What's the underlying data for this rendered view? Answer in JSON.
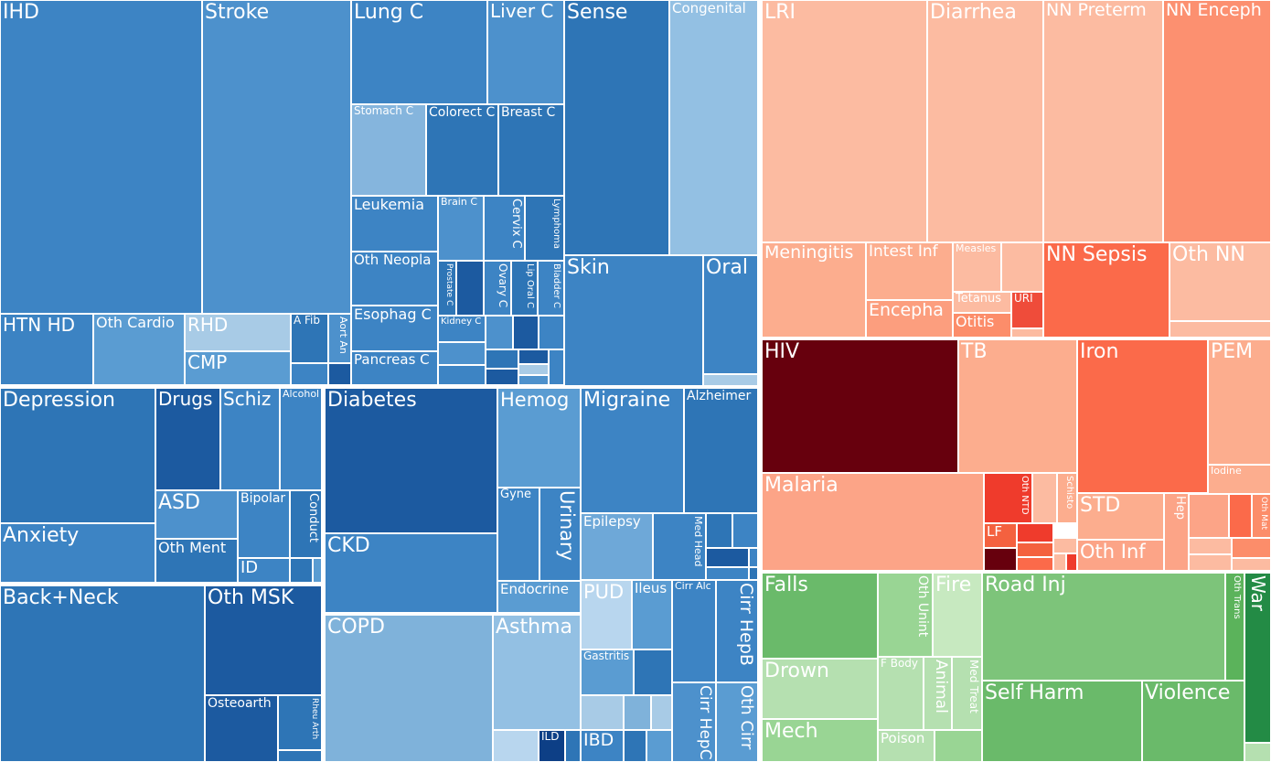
{
  "chart_data": {
    "type": "treemap",
    "title": "",
    "groups": [
      {
        "color": "#2e75b6",
        "children": [
          "IHD",
          "Stroke",
          "HTN HD",
          "Oth Cardio",
          "RHD",
          "CMP",
          "A Fib",
          "Aort An"
        ]
      },
      {
        "color": "#2e75b6",
        "children": [
          "Lung C",
          "Liver C",
          "Stomach C",
          "Colorect C",
          "Breast C",
          "Leukemia",
          "Brain C",
          "Cervix C",
          "Lymphoma",
          "Oth Neopla",
          "Prostate C",
          "Ovary C",
          "Lip Oral C",
          "Bladder C",
          "Kidney C",
          "Esophag C",
          "Pancreas C"
        ]
      },
      {
        "color": "#2e75b6",
        "children": [
          "Sense",
          "Congenital",
          "Skin",
          "Oral"
        ]
      },
      {
        "color": "#2e75b6",
        "children": [
          "Depression",
          "Anxiety",
          "Drugs",
          "Schiz",
          "Alcohol",
          "ASD",
          "Bipolar",
          "Conduct",
          "Oth Ment",
          "ID"
        ]
      },
      {
        "color": "#2e75b6",
        "children": [
          "Diabetes",
          "CKD",
          "Hemog",
          "Gyne",
          "Urinary",
          "Endocrine"
        ]
      },
      {
        "color": "#2e75b6",
        "children": [
          "Migraine",
          "Alzheimer",
          "Epilepsy",
          "Med Head"
        ]
      },
      {
        "color": "#2e75b6",
        "children": [
          "Back+Neck",
          "Oth MSK",
          "Osteoarth",
          "Rheu Arth"
        ]
      },
      {
        "color": "#2e75b6",
        "children": [
          "COPD",
          "Asthma",
          "ILD"
        ]
      },
      {
        "color": "#2e75b6",
        "children": [
          "PUD",
          "Ileus",
          "Gastritis",
          "IBD",
          "Cirr Alc",
          "Cirr HepB",
          "Cirr HepC",
          "Oth Cirr"
        ]
      },
      {
        "color": "#fc8d62",
        "children": [
          "LRI",
          "Diarrhea",
          "Meningitis",
          "Intest Inf",
          "Measles",
          "Encepha",
          "Tetanus",
          "URI",
          "Otitis"
        ]
      },
      {
        "color": "#fc8d62",
        "children": [
          "NN Preterm",
          "NN Enceph",
          "NN Sepsis",
          "Oth NN"
        ]
      },
      {
        "color": "#fc8d62",
        "children": [
          "HIV",
          "TB",
          "Malaria",
          "Oth NTD",
          "Schisto",
          "LF",
          "STD",
          "Hep",
          "Oth Inf"
        ]
      },
      {
        "color": "#fc8d62",
        "children": [
          "Iron",
          "PEM",
          "Iodine",
          "Oth Mat"
        ]
      },
      {
        "color": "#5bb35b",
        "children": [
          "Falls",
          "Drown",
          "Mech",
          "Oth Unint",
          "Fire",
          "F Body",
          "Animal",
          "Med Treat",
          "Poison"
        ]
      },
      {
        "color": "#5bb35b",
        "children": [
          "Road Inj",
          "Oth Trans",
          "War",
          "Self Harm",
          "Violence"
        ]
      }
    ]
  }
}
